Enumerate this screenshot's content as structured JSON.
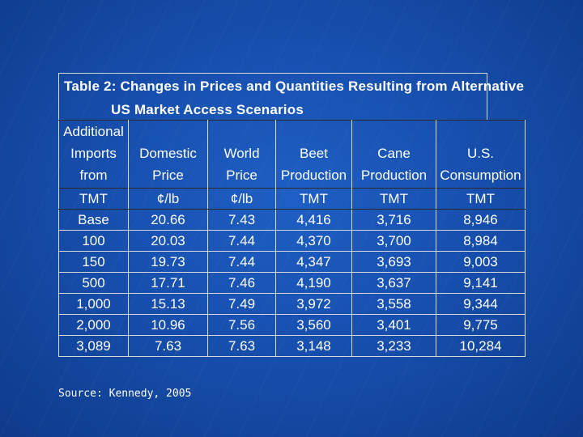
{
  "title": {
    "line1": "Table 2: Changes in Prices and Quantities Resulting from Alternative",
    "line2": "US Market Access Scenarios"
  },
  "columns": [
    "Additional Imports from",
    "Domestic Price",
    "World Price",
    "Beet Production",
    "Cane Production",
    "U.S. Consumption"
  ],
  "column_lines": [
    [
      "Additional",
      "Imports",
      "from"
    ],
    [
      "Domestic",
      "Price"
    ],
    [
      "World",
      "Price"
    ],
    [
      "Beet",
      "Production"
    ],
    [
      "Cane",
      "Production"
    ],
    [
      "U.S.",
      "Consumption"
    ]
  ],
  "units": [
    "TMT",
    "¢/lb",
    "¢/lb",
    "TMT",
    "TMT",
    "TMT"
  ],
  "rows": [
    [
      "Base",
      "20.66",
      "7.43",
      "4,416",
      "3,716",
      "8,946"
    ],
    [
      "100",
      "20.03",
      "7.44",
      "4,370",
      "3,700",
      "8,984"
    ],
    [
      "150",
      "19.73",
      "7.44",
      "4,347",
      "3,693",
      "9,003"
    ],
    [
      "500",
      "17.71",
      "7.46",
      "4,190",
      "3,637",
      "9,141"
    ],
    [
      "1,000",
      "15.13",
      "7.49",
      "3,972",
      "3,558",
      "9,344"
    ],
    [
      "2,000",
      "10.96",
      "7.56",
      "3,560",
      "3,401",
      "9,775"
    ],
    [
      "3,089",
      "7.63",
      "7.63",
      "3,148",
      "3,233",
      "10,284"
    ]
  ],
  "source": "Source: Kennedy, 2005",
  "colors": {
    "background": "#174fae",
    "text": "#ffffff",
    "rule_light": "#d8d8d8",
    "rule_dark": "#2a2a2a"
  }
}
